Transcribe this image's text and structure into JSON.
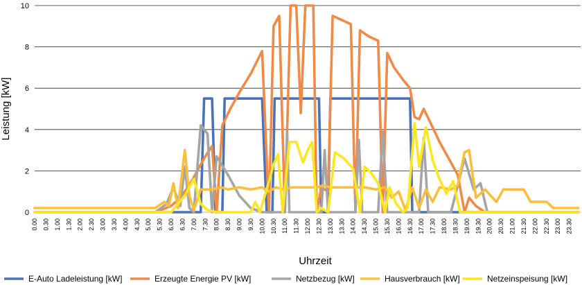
{
  "chart_data": {
    "type": "line",
    "xlabel": "Uhrzeit",
    "ylabel": "Leistung [kW]",
    "ylim": [
      0,
      10
    ],
    "yticks": [
      0,
      2,
      4,
      6,
      8,
      10
    ],
    "grid": true,
    "legend_position": "bottom",
    "x_categories": [
      "0.00",
      "0.30",
      "1.00",
      "1.30",
      "2.00",
      "2.30",
      "3.00",
      "3.30",
      "4.00",
      "4.30",
      "5.00",
      "5.30",
      "6.00",
      "6.30",
      "7.00",
      "7.30",
      "8.00",
      "8.30",
      "9.00",
      "9.30",
      "10.00",
      "10.30",
      "11.00",
      "11.30",
      "12.00",
      "12.30",
      "13.00",
      "13.30",
      "14.00",
      "14.30",
      "15.00",
      "15.30",
      "16.00",
      "16.30",
      "17.00",
      "17.30",
      "18.00",
      "18.30",
      "19.00",
      "19.30",
      "20.00",
      "20.30",
      "21.00",
      "21.30",
      "22.00",
      "22.30",
      "23.00",
      "23.30"
    ],
    "series": [
      {
        "name": "E-Auto Ladeleistung [kW]",
        "color": "#4a72b8",
        "points": [
          [
            0,
            0
          ],
          [
            5.3,
            0
          ],
          [
            7.3,
            0
          ],
          [
            7.45,
            5.5
          ],
          [
            7.8,
            5.5
          ],
          [
            7.95,
            0
          ],
          [
            8.25,
            0
          ],
          [
            8.35,
            5.5
          ],
          [
            10.0,
            5.5
          ],
          [
            10.2,
            0
          ],
          [
            10.45,
            0
          ],
          [
            10.55,
            5.5
          ],
          [
            12.5,
            5.5
          ],
          [
            12.6,
            0
          ],
          [
            12.9,
            0
          ],
          [
            13.0,
            5.5
          ],
          [
            16.5,
            5.5
          ],
          [
            16.6,
            0
          ],
          [
            23.9,
            0
          ]
        ]
      },
      {
        "name": "Erzeugte Energie PV [kW]",
        "color": "#ef8a47",
        "points": [
          [
            0,
            0
          ],
          [
            5.3,
            0
          ],
          [
            6.0,
            0.3
          ],
          [
            6.4,
            0.7
          ],
          [
            6.8,
            1.3
          ],
          [
            7.2,
            2.1
          ],
          [
            7.5,
            2.7
          ],
          [
            7.8,
            3.2
          ],
          [
            8.0,
            0
          ],
          [
            8.25,
            4.2
          ],
          [
            8.6,
            5.0
          ],
          [
            9.0,
            5.8
          ],
          [
            9.5,
            6.7
          ],
          [
            10.0,
            7.8
          ],
          [
            10.3,
            0
          ],
          [
            10.5,
            9.0
          ],
          [
            10.75,
            9.5
          ],
          [
            11.0,
            0
          ],
          [
            11.25,
            10
          ],
          [
            11.5,
            10
          ],
          [
            11.7,
            4.8
          ],
          [
            11.9,
            10
          ],
          [
            12.25,
            10
          ],
          [
            12.4,
            0
          ],
          [
            12.6,
            1.2
          ],
          [
            12.9,
            1.0
          ],
          [
            13.1,
            9.5
          ],
          [
            13.5,
            9.3
          ],
          [
            13.9,
            9.1
          ],
          [
            14.1,
            0
          ],
          [
            14.3,
            8.8
          ],
          [
            14.7,
            8.5
          ],
          [
            15.1,
            8.3
          ],
          [
            15.3,
            0
          ],
          [
            15.5,
            7.7
          ],
          [
            15.8,
            7.0
          ],
          [
            16.2,
            6.4
          ],
          [
            16.5,
            6.0
          ],
          [
            16.7,
            4.6
          ],
          [
            16.9,
            4.5
          ],
          [
            17.1,
            5.0
          ],
          [
            17.5,
            4.1
          ],
          [
            17.8,
            3.4
          ],
          [
            18.2,
            2.6
          ],
          [
            18.6,
            1.8
          ],
          [
            18.9,
            0
          ],
          [
            19.1,
            0.7
          ],
          [
            19.4,
            0.3
          ],
          [
            19.8,
            0
          ],
          [
            23.9,
            0
          ]
        ]
      },
      {
        "name": "Netzbezug [kW]",
        "color": "#a5a5a5",
        "points": [
          [
            0,
            0
          ],
          [
            5.3,
            0
          ],
          [
            5.8,
            0.4
          ],
          [
            6.1,
            1.2
          ],
          [
            6.4,
            0.3
          ],
          [
            6.6,
            2.2
          ],
          [
            6.8,
            0.2
          ],
          [
            7.0,
            0
          ],
          [
            7.3,
            4.2
          ],
          [
            7.6,
            3.8
          ],
          [
            7.8,
            0
          ],
          [
            8.0,
            2.7
          ],
          [
            8.5,
            1.8
          ],
          [
            9.0,
            0.8
          ],
          [
            9.5,
            0.2
          ],
          [
            10.0,
            0
          ],
          [
            11.0,
            0
          ],
          [
            11.1,
            3.9
          ],
          [
            11.2,
            0
          ],
          [
            12.6,
            0
          ],
          [
            12.75,
            3.0
          ],
          [
            12.9,
            0
          ],
          [
            14.1,
            0
          ],
          [
            14.25,
            3.5
          ],
          [
            14.4,
            0
          ],
          [
            15.1,
            0
          ],
          [
            15.3,
            3.9
          ],
          [
            15.5,
            0
          ],
          [
            16.9,
            0
          ],
          [
            17.1,
            3.6
          ],
          [
            17.3,
            0
          ],
          [
            18.3,
            0
          ],
          [
            18.9,
            2.6
          ],
          [
            19.3,
            1.1
          ],
          [
            19.6,
            1.4
          ],
          [
            19.9,
            0
          ],
          [
            23.9,
            0
          ]
        ]
      },
      {
        "name": "Hausverbrauch [kW]",
        "color": "#fbbf3b",
        "points": [
          [
            0,
            0.2
          ],
          [
            5.3,
            0.2
          ],
          [
            5.7,
            0.5
          ],
          [
            5.9,
            0.3
          ],
          [
            6.1,
            1.4
          ],
          [
            6.3,
            0.2
          ],
          [
            6.6,
            3.0
          ],
          [
            6.8,
            0.8
          ],
          [
            7.0,
            0.1
          ],
          [
            7.3,
            1.1
          ],
          [
            7.8,
            1.1
          ],
          [
            8.2,
            1.2
          ],
          [
            8.5,
            1.1
          ],
          [
            9.0,
            1.2
          ],
          [
            9.5,
            1.1
          ],
          [
            10.0,
            1.2
          ],
          [
            10.3,
            1.0
          ],
          [
            10.6,
            1.2
          ],
          [
            11.0,
            1.1
          ],
          [
            11.3,
            1.2
          ],
          [
            12.0,
            1.2
          ],
          [
            12.4,
            1.2
          ],
          [
            12.7,
            1.3
          ],
          [
            13.0,
            1.2
          ],
          [
            13.5,
            1.2
          ],
          [
            14.0,
            1.2
          ],
          [
            14.5,
            1.2
          ],
          [
            15.0,
            1.1
          ],
          [
            15.4,
            1.2
          ],
          [
            15.7,
            0.7
          ],
          [
            16.0,
            1.0
          ],
          [
            16.3,
            0.1
          ],
          [
            16.6,
            1.2
          ],
          [
            16.9,
            0.2
          ],
          [
            17.2,
            1.1
          ],
          [
            17.5,
            0.5
          ],
          [
            17.8,
            1.2
          ],
          [
            18.3,
            1.1
          ],
          [
            18.6,
            1.3
          ],
          [
            18.9,
            2.9
          ],
          [
            19.1,
            3.0
          ],
          [
            19.4,
            0.7
          ],
          [
            19.8,
            1.1
          ],
          [
            20.3,
            0.5
          ],
          [
            20.6,
            1.1
          ],
          [
            21.5,
            1.1
          ],
          [
            21.8,
            0.5
          ],
          [
            22.5,
            0.5
          ],
          [
            22.8,
            0.2
          ],
          [
            23.9,
            0.2
          ]
        ]
      },
      {
        "name": "Netzeinspeisung [kW]",
        "color": "#fde725",
        "points": [
          [
            0,
            0
          ],
          [
            5.3,
            0
          ],
          [
            6.0,
            0
          ],
          [
            6.6,
            0.8
          ],
          [
            7.0,
            1.6
          ],
          [
            7.3,
            0.4
          ],
          [
            7.6,
            0.1
          ],
          [
            8.0,
            0
          ],
          [
            9.5,
            0
          ],
          [
            9.7,
            0.5
          ],
          [
            9.9,
            0
          ],
          [
            10.2,
            1.1
          ],
          [
            10.5,
            2.3
          ],
          [
            10.7,
            2.8
          ],
          [
            10.9,
            0
          ],
          [
            11.2,
            3.4
          ],
          [
            11.5,
            3.4
          ],
          [
            11.8,
            2.4
          ],
          [
            12.0,
            3.0
          ],
          [
            12.2,
            3.4
          ],
          [
            12.4,
            0
          ],
          [
            12.6,
            0.2
          ],
          [
            12.9,
            0
          ],
          [
            13.2,
            2.9
          ],
          [
            13.6,
            2.6
          ],
          [
            14.0,
            2.1
          ],
          [
            14.3,
            0
          ],
          [
            14.5,
            2.2
          ],
          [
            14.8,
            1.9
          ],
          [
            15.1,
            1.4
          ],
          [
            15.4,
            0
          ],
          [
            15.6,
            1.2
          ],
          [
            15.9,
            0.4
          ],
          [
            16.2,
            0
          ],
          [
            16.4,
            0.2
          ],
          [
            16.7,
            4.3
          ],
          [
            16.9,
            2.2
          ],
          [
            17.2,
            4.1
          ],
          [
            17.5,
            2.5
          ],
          [
            17.8,
            1.6
          ],
          [
            18.1,
            0.9
          ],
          [
            18.4,
            1.5
          ],
          [
            18.7,
            0
          ],
          [
            23.9,
            0
          ]
        ]
      }
    ]
  }
}
